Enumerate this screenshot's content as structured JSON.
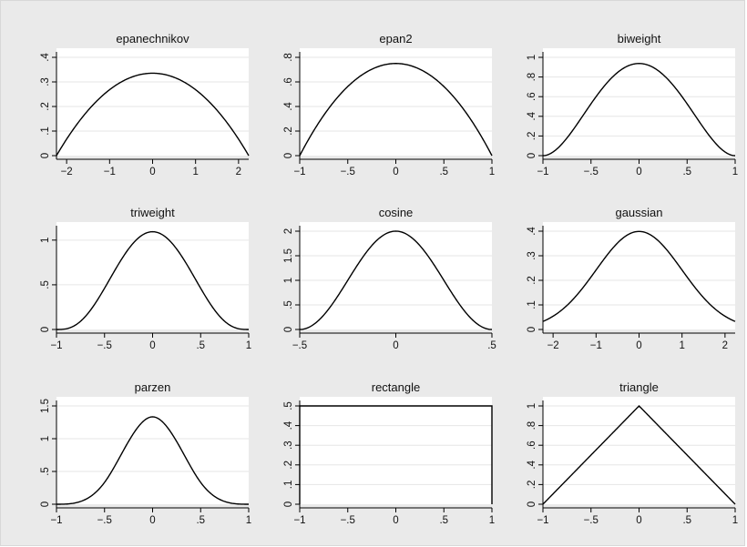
{
  "chart_data": [
    {
      "type": "line",
      "title": "epanechnikov",
      "kernel": "epanechnikov",
      "xlim": [
        -2.236,
        2.236
      ],
      "ylim": [
        0,
        0.4
      ],
      "xticks": [
        -2,
        -1,
        0,
        1,
        2
      ],
      "xtick_labels": [
        "−2",
        "−1",
        "0",
        "1",
        "2"
      ],
      "yticks": [
        0,
        0.1,
        0.2,
        0.3,
        0.4
      ],
      "ytick_labels": [
        "0",
        ".1",
        ".2",
        ".3",
        ".4"
      ],
      "peak": 0.3354,
      "grid": true
    },
    {
      "type": "line",
      "title": "epan2",
      "kernel": "epan2",
      "xlim": [
        -1,
        1
      ],
      "ylim": [
        0,
        0.8
      ],
      "xticks": [
        -1,
        -0.5,
        0,
        0.5,
        1
      ],
      "xtick_labels": [
        "−1",
        "−.5",
        "0",
        ".5",
        "1"
      ],
      "yticks": [
        0,
        0.2,
        0.4,
        0.6,
        0.8
      ],
      "ytick_labels": [
        "0",
        ".2",
        ".4",
        ".6",
        ".8"
      ],
      "peak": 0.75,
      "grid": true
    },
    {
      "type": "line",
      "title": "biweight",
      "kernel": "biweight",
      "xlim": [
        -1,
        1
      ],
      "ylim": [
        0,
        1
      ],
      "xticks": [
        -1,
        -0.5,
        0,
        0.5,
        1
      ],
      "xtick_labels": [
        "−1",
        "−.5",
        "0",
        ".5",
        "1"
      ],
      "yticks": [
        0,
        0.2,
        0.4,
        0.6,
        0.8,
        1
      ],
      "ytick_labels": [
        "0",
        ".2",
        ".4",
        ".6",
        ".8",
        "1"
      ],
      "peak": 0.9375,
      "grid": true
    },
    {
      "type": "line",
      "title": "triweight",
      "kernel": "triweight",
      "xlim": [
        -1,
        1
      ],
      "ylim": [
        0,
        1.1
      ],
      "xticks": [
        -1,
        -0.5,
        0,
        0.5,
        1
      ],
      "xtick_labels": [
        "−1",
        "−.5",
        "0",
        ".5",
        "1"
      ],
      "yticks": [
        0,
        0.5,
        1
      ],
      "ytick_labels": [
        "0",
        ".5",
        "1"
      ],
      "peak": 1.09375,
      "grid": true
    },
    {
      "type": "line",
      "title": "cosine",
      "kernel": "cosine",
      "xlim": [
        -0.5,
        0.5
      ],
      "ylim": [
        0,
        2
      ],
      "xticks": [
        -0.5,
        0,
        0.5
      ],
      "xtick_labels": [
        "−.5",
        "0",
        ".5"
      ],
      "yticks": [
        0,
        0.5,
        1,
        1.5,
        2
      ],
      "ytick_labels": [
        "0",
        ".5",
        "1",
        "1.5",
        "2"
      ],
      "peak": 2,
      "grid": true
    },
    {
      "type": "line",
      "title": "gaussian",
      "kernel": "gaussian",
      "xlim": [
        -2.236,
        2.236
      ],
      "ylim": [
        0,
        0.4
      ],
      "xticks": [
        -2,
        -1,
        0,
        1,
        2
      ],
      "xtick_labels": [
        "−2",
        "−1",
        "0",
        "1",
        "2"
      ],
      "yticks": [
        0,
        0.1,
        0.2,
        0.3,
        0.4
      ],
      "ytick_labels": [
        "0",
        ".1",
        ".2",
        ".3",
        ".4"
      ],
      "peak": 0.3989,
      "grid": true
    },
    {
      "type": "line",
      "title": "parzen",
      "kernel": "parzen",
      "xlim": [
        -1,
        1
      ],
      "ylim": [
        0,
        1.5
      ],
      "xticks": [
        -1,
        -0.5,
        0,
        0.5,
        1
      ],
      "xtick_labels": [
        "−1",
        "−.5",
        "0",
        ".5",
        "1"
      ],
      "yticks": [
        0,
        0.5,
        1,
        1.5
      ],
      "ytick_labels": [
        "0",
        ".5",
        "1",
        "1.5"
      ],
      "peak": 1.3333,
      "grid": true
    },
    {
      "type": "line",
      "title": "rectangle",
      "kernel": "rectangle",
      "xlim": [
        -1,
        1
      ],
      "ylim": [
        0,
        0.5
      ],
      "xticks": [
        -1,
        -0.5,
        0,
        0.5,
        1
      ],
      "xtick_labels": [
        "−1",
        "−.5",
        "0",
        ".5",
        "1"
      ],
      "yticks": [
        0,
        0.1,
        0.2,
        0.3,
        0.4,
        0.5
      ],
      "ytick_labels": [
        "0",
        ".1",
        ".2",
        ".3",
        ".4",
        ".5"
      ],
      "peak": 0.5,
      "grid": true
    },
    {
      "type": "line",
      "title": "triangle",
      "kernel": "triangle",
      "xlim": [
        -1,
        1
      ],
      "ylim": [
        0,
        1
      ],
      "xticks": [
        -1,
        -0.5,
        0,
        0.5,
        1
      ],
      "xtick_labels": [
        "−1",
        "−.5",
        "0",
        ".5",
        "1"
      ],
      "yticks": [
        0,
        0.2,
        0.4,
        0.6,
        0.8,
        1
      ],
      "ytick_labels": [
        "0",
        ".2",
        ".4",
        ".6",
        ".8",
        "1"
      ],
      "peak": 1,
      "grid": true
    }
  ]
}
